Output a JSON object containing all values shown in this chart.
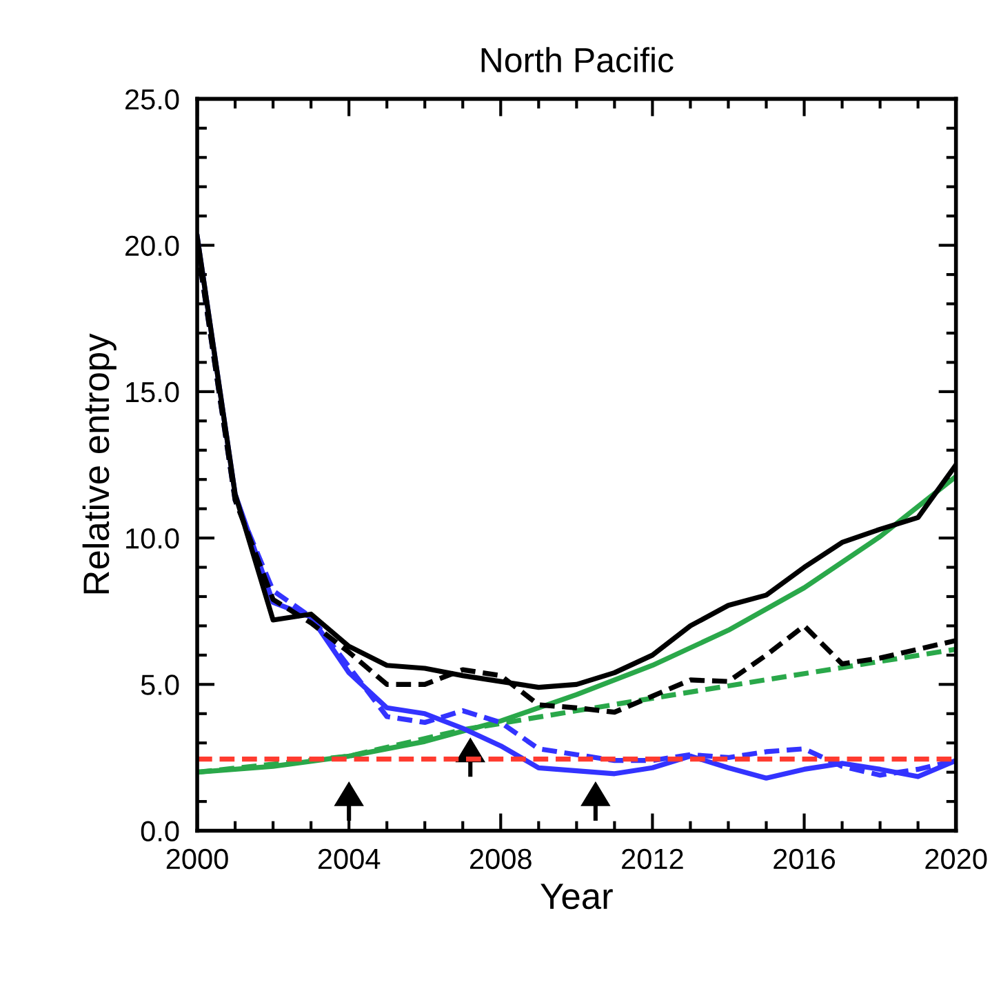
{
  "chart_data": {
    "type": "line",
    "title": "North Pacific",
    "xlabel": "Year",
    "ylabel": "Relative entropy",
    "xlim": [
      2000,
      2020
    ],
    "ylim": [
      0,
      25
    ],
    "xticks": [
      2000,
      2004,
      2008,
      2012,
      2016,
      2020
    ],
    "yticks": [
      {
        "value": 0,
        "label": "0.0"
      },
      {
        "value": 5,
        "label": "5.0"
      },
      {
        "value": 10,
        "label": "10.0"
      },
      {
        "value": 15,
        "label": "15.0"
      },
      {
        "value": 20,
        "label": "20.0"
      },
      {
        "value": 25,
        "label": "25.0"
      }
    ],
    "grid": false,
    "legend": false,
    "marker": "none",
    "series": [
      {
        "color": "#2aa84a",
        "line_style": "solid",
        "x": [
          2000,
          2002,
          2004,
          2006,
          2008,
          2010,
          2012,
          2014,
          2016,
          2018,
          2020
        ],
        "values": [
          2.0,
          2.2,
          2.55,
          3.05,
          3.75,
          4.65,
          5.65,
          6.85,
          8.3,
          10.05,
          12.1
        ]
      },
      {
        "color": "#2aa84a",
        "line_style": "dashed",
        "x": [
          2000,
          2004,
          2007,
          2010,
          2014,
          2020
        ],
        "values": [
          2.0,
          2.55,
          3.45,
          4.1,
          4.95,
          6.2
        ]
      },
      {
        "color": "#3333ff",
        "line_style": "solid",
        "x": [
          2000,
          2001,
          2002,
          2003,
          2004,
          2005,
          2006,
          2007,
          2008,
          2009,
          2010,
          2011,
          2012,
          2013,
          2014,
          2015,
          2016,
          2017,
          2018,
          2019,
          2020
        ],
        "values": [
          20.3,
          11.5,
          7.8,
          7.3,
          5.4,
          4.2,
          4.0,
          3.5,
          2.9,
          2.15,
          2.05,
          1.95,
          2.15,
          2.55,
          2.15,
          1.8,
          2.1,
          2.3,
          2.1,
          1.85,
          2.4
        ]
      },
      {
        "color": "#3333ff",
        "line_style": "dashed",
        "x": [
          2000,
          2001,
          2002,
          2003,
          2004,
          2005,
          2006,
          2007,
          2008,
          2009,
          2010,
          2011,
          2012,
          2013,
          2014,
          2015,
          2016,
          2017,
          2018,
          2019,
          2020
        ],
        "values": [
          20.0,
          11.3,
          8.2,
          7.3,
          5.6,
          3.9,
          3.7,
          4.1,
          3.7,
          2.8,
          2.6,
          2.4,
          2.4,
          2.6,
          2.5,
          2.7,
          2.8,
          2.2,
          1.9,
          2.1,
          2.4
        ]
      },
      {
        "color": "#000000",
        "line_style": "solid",
        "x": [
          2000,
          2001,
          2002,
          2003,
          2004,
          2005,
          2006,
          2007,
          2008,
          2009,
          2010,
          2011,
          2012,
          2013,
          2014,
          2015,
          2016,
          2017,
          2018,
          2019,
          2020
        ],
        "values": [
          20.3,
          11.5,
          7.2,
          7.4,
          6.3,
          5.65,
          5.55,
          5.3,
          5.1,
          4.9,
          5.0,
          5.4,
          6.0,
          7.0,
          7.7,
          8.05,
          9.0,
          9.85,
          10.3,
          10.7,
          12.5
        ]
      },
      {
        "color": "#000000",
        "line_style": "dashed",
        "x": [
          2000,
          2001,
          2002,
          2003,
          2004,
          2005,
          2006,
          2007,
          2008,
          2009,
          2010,
          2011,
          2012,
          2013,
          2014,
          2015,
          2016,
          2017,
          2018,
          2019,
          2020
        ],
        "values": [
          20.0,
          11.3,
          7.9,
          7.1,
          6.1,
          5.0,
          5.0,
          5.5,
          5.3,
          4.3,
          4.2,
          4.05,
          4.6,
          5.15,
          5.1,
          6.0,
          7.0,
          5.7,
          5.9,
          6.2,
          6.5
        ]
      }
    ],
    "ref_lines": [
      {
        "axis": "y",
        "value": 2.45,
        "color": "#ff3b2f",
        "line_style": "dashed"
      }
    ]
  }
}
